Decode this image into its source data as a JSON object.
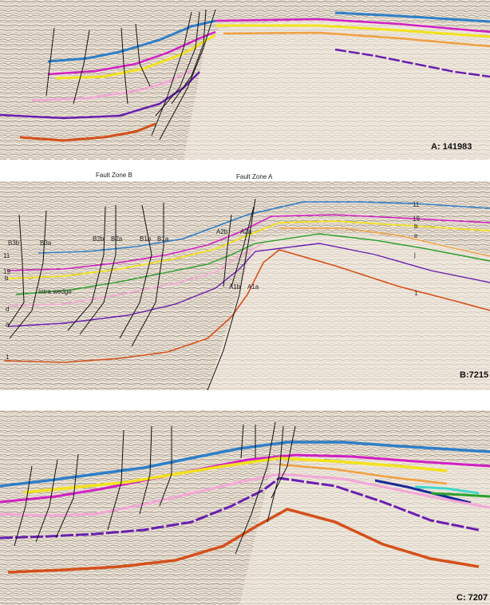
{
  "panels": [
    {
      "label": "A: 141983"
    },
    {
      "label": "B:7215"
    },
    {
      "label": "C: 7207"
    }
  ],
  "panelB_annotations": {
    "fault_zone_b": "Fault Zone B",
    "fault_zone_a": "Fault Zone A",
    "faults": {
      "b3b": "B3b",
      "b3a": "B3a",
      "b2b": "B2b",
      "b2a": "B2a",
      "b1b": "B1b",
      "b1a": "B1a",
      "a2b": "A2b",
      "a2a": "A2a",
      "a1b": "A1b",
      "a1a": "A1a"
    },
    "horizons_left": {
      "h11": "11",
      "h19": "19",
      "hb": "b",
      "hd": "d",
      "ha": "a",
      "h1": "1"
    },
    "horizons_right": {
      "h11": "11",
      "h19": "19",
      "hb": "b",
      "he": "e",
      "hj": "j",
      "h1": "1"
    },
    "wedge": "Intra wedge"
  },
  "colors": {
    "background": "#f2ece4",
    "horizon_blue": "#2e7fc8",
    "horizon_magenta": "#d21fc4",
    "horizon_yellow": "#f2e21c",
    "horizon_orange_light": "#f0a040",
    "horizon_pink": "#f4a6d8",
    "horizon_purple": "#6a1fb0",
    "horizon_orange": "#d4501a",
    "horizon_green": "#2aa02a",
    "horizon_navy": "#1a2a9a",
    "horizon_cyan": "#40d8c8",
    "fault": "#111111"
  }
}
